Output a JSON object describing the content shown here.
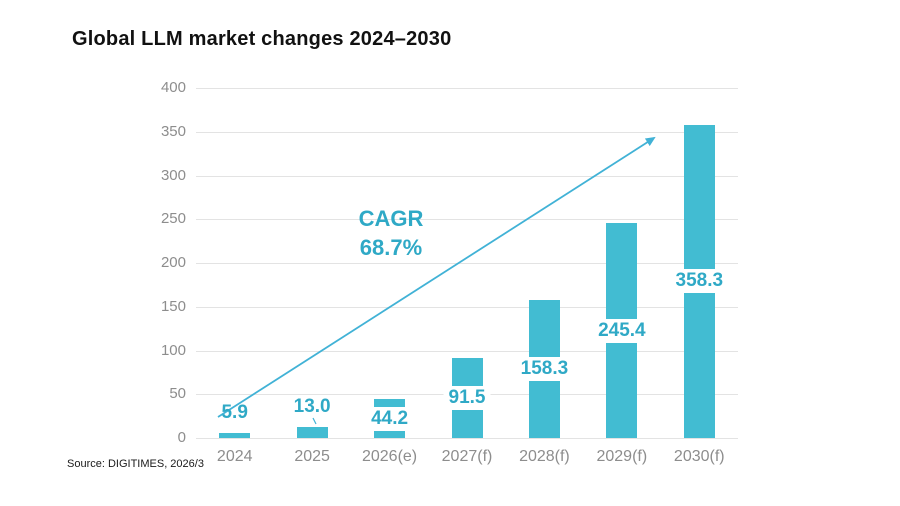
{
  "header": {
    "title": "Global LLM market changes 2024–2030"
  },
  "annotation": {
    "cagr_label": "CAGR",
    "cagr_value": "68.7%"
  },
  "footer": {
    "source": "Source: DIGITIMES, 2026/3"
  },
  "colors": {
    "bar": "#42bcd2",
    "value_label": "#2fa9c6",
    "annotation_text": "#2fa9c6",
    "arrow": "#41b2d6",
    "gridline": "#e3e3e3",
    "axis_text": "#8d8d8d",
    "title_text": "#111111"
  },
  "chart_data": {
    "type": "bar",
    "title": "Global LLM market changes 2024–2030",
    "categories": [
      "2024",
      "2025",
      "2026(e)",
      "2027(f)",
      "2028(f)",
      "2029(f)",
      "2030(f)"
    ],
    "values": [
      5.9,
      13.0,
      44.2,
      91.5,
      158.3,
      245.4,
      358.3
    ],
    "value_labels": [
      "5.9",
      "13.0",
      "44.2",
      "91.5",
      "158.3",
      "245.4",
      "358.3"
    ],
    "xlabel": "",
    "ylabel": "",
    "ylim": [
      0,
      400
    ],
    "yticks": [
      0,
      50,
      100,
      150,
      200,
      250,
      300,
      350,
      400
    ],
    "grid": true,
    "legend": false,
    "annotation": "CAGR 68.7%",
    "annotation_note": "trend arrow from 2024 bar to upper right near 2030 bar",
    "source": "Source: DIGITIMES, 2026/3"
  }
}
